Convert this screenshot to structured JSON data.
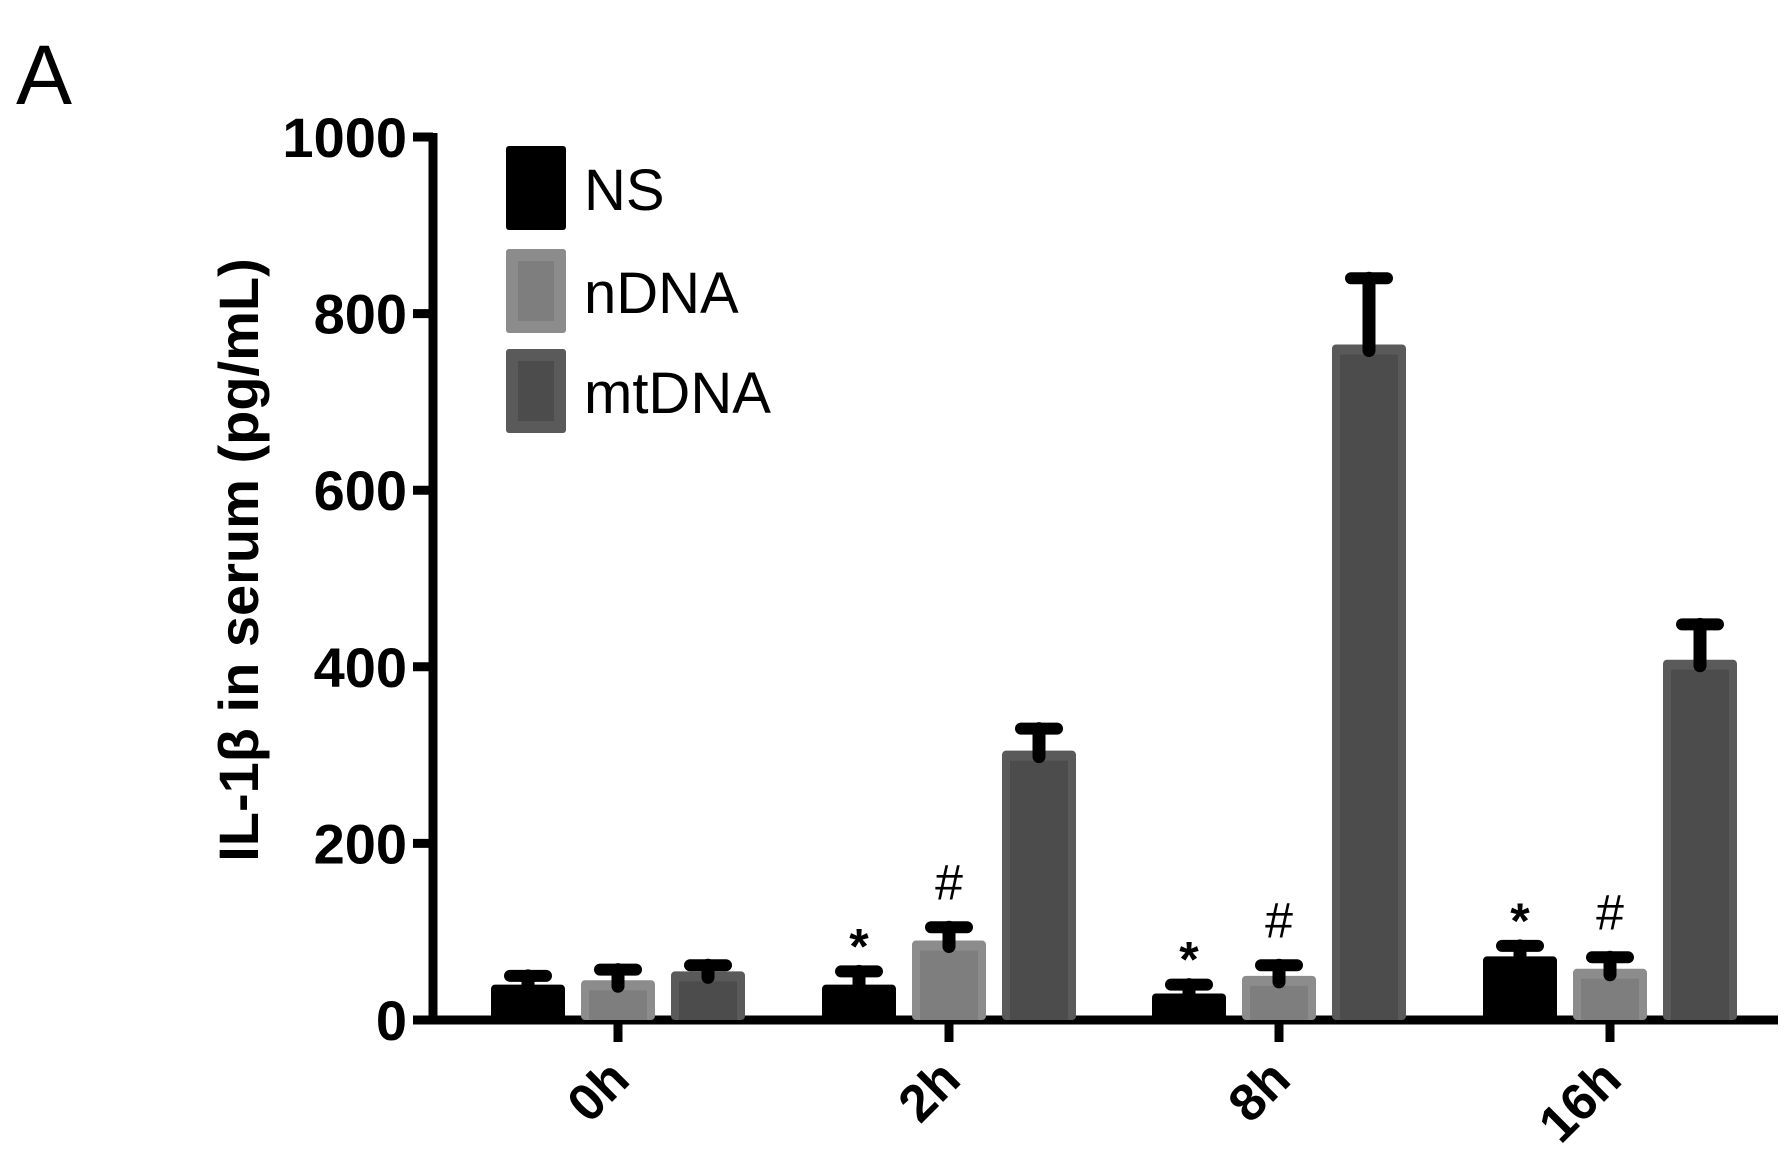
{
  "panel_label": "A",
  "chart_data": {
    "type": "bar",
    "ylabel": "IL-1β in serum (pg/mL)",
    "xlabel": "",
    "ylim": [
      0,
      1000
    ],
    "yticks": [
      0,
      200,
      400,
      600,
      800,
      1000
    ],
    "categories": [
      "0h",
      "2h",
      "8h",
      "16h"
    ],
    "legend_position": "top-left",
    "series": [
      {
        "name": "NS",
        "color": "#000000",
        "values": [
          40,
          40,
          30,
          72
        ],
        "errors": [
          10,
          15,
          10,
          12
        ]
      },
      {
        "name": "nDNA",
        "color": "#8c8c8c",
        "values": [
          45,
          90,
          50,
          58
        ],
        "errors": [
          12,
          15,
          12,
          13
        ]
      },
      {
        "name": "mtDNA",
        "color": "#5a5a5a",
        "values": [
          55,
          305,
          765,
          408
        ],
        "errors": [
          7,
          25,
          75,
          40
        ]
      }
    ],
    "annotations": [
      {
        "text": "*",
        "category": "2h",
        "series": "NS"
      },
      {
        "text": "#",
        "category": "2h",
        "series": "nDNA"
      },
      {
        "text": "*",
        "category": "8h",
        "series": "NS"
      },
      {
        "text": "#",
        "category": "8h",
        "series": "nDNA"
      },
      {
        "text": "*",
        "category": "16h",
        "series": "NS"
      },
      {
        "text": "#",
        "category": "16h",
        "series": "nDNA"
      }
    ]
  }
}
